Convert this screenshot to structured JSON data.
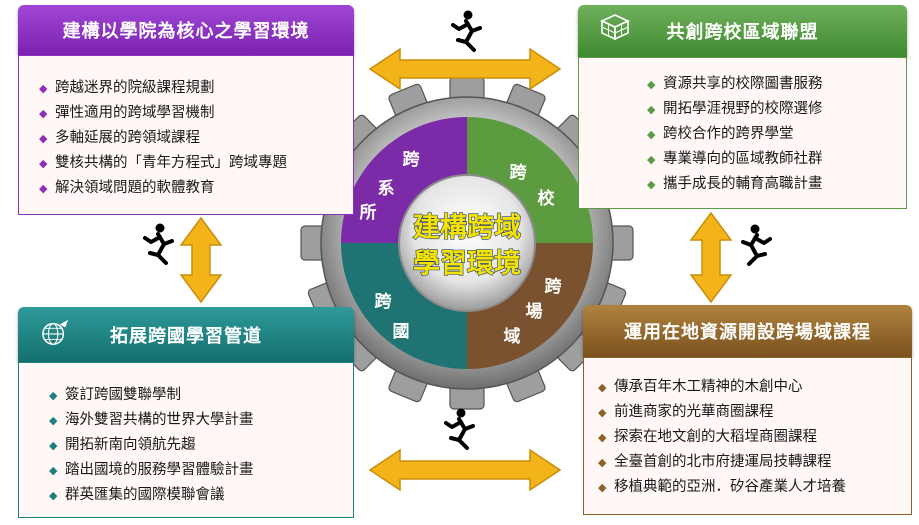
{
  "panels": {
    "top_left": {
      "title": "建構以學院為核心之學習環境",
      "items": [
        "跨越迷界的院級課程規劃",
        "彈性適用的跨域學習機制",
        "多軸延展的跨領域課程",
        "雙核共構的「青年方程式」跨域專題",
        "解決領域問題的軟體教育"
      ]
    },
    "top_right": {
      "title": "共創跨校區域聯盟",
      "icon": "cube-grid-icon",
      "items": [
        "資源共享的校際圖書服務",
        "開拓學涯視野的校際選修",
        "跨校合作的跨界學堂",
        "專業導向的區域教師社群",
        "攜手成長的輔育高職計畫"
      ]
    },
    "bottom_left": {
      "title": "拓展跨國學習管道",
      "icon": "globe-plane-icon",
      "items": [
        "簽訂跨國雙聯學制",
        "海外雙習共構的世界大學計畫",
        "開拓新南向領航先趨",
        "踏出國境的服務學習體驗計畫",
        "群英匯集的國際模聯會議"
      ]
    },
    "bottom_right": {
      "title": "運用在地資源開設跨場域課程",
      "items": [
        "傳承百年木工精神的木創中心",
        "前進商家的光華商圈課程",
        "探索在地文創的大稻埕商圈課程",
        "全臺首創的北市府捷運局技轉課程",
        "移植典範的亞洲．矽谷產業人才培養"
      ]
    }
  },
  "gear": {
    "center_line1": "建構跨域",
    "center_line2": "學習環境",
    "segments": {
      "top_left": [
        "跨",
        "系",
        "所"
      ],
      "top_right": [
        "跨",
        "校"
      ],
      "bottom_left": [
        "跨",
        "國"
      ],
      "bottom_right": [
        "跨",
        "場",
        "域"
      ]
    }
  },
  "colors": {
    "purple": "#8e2fb8",
    "green": "#5a9c46",
    "teal": "#1d7f7f",
    "brown": "#8d6226",
    "arrow_yellow": "#f2b418",
    "center_text": "#f5e200"
  },
  "icons": {
    "runner": "running-person-icon",
    "arrow": "double-arrow-icon"
  }
}
